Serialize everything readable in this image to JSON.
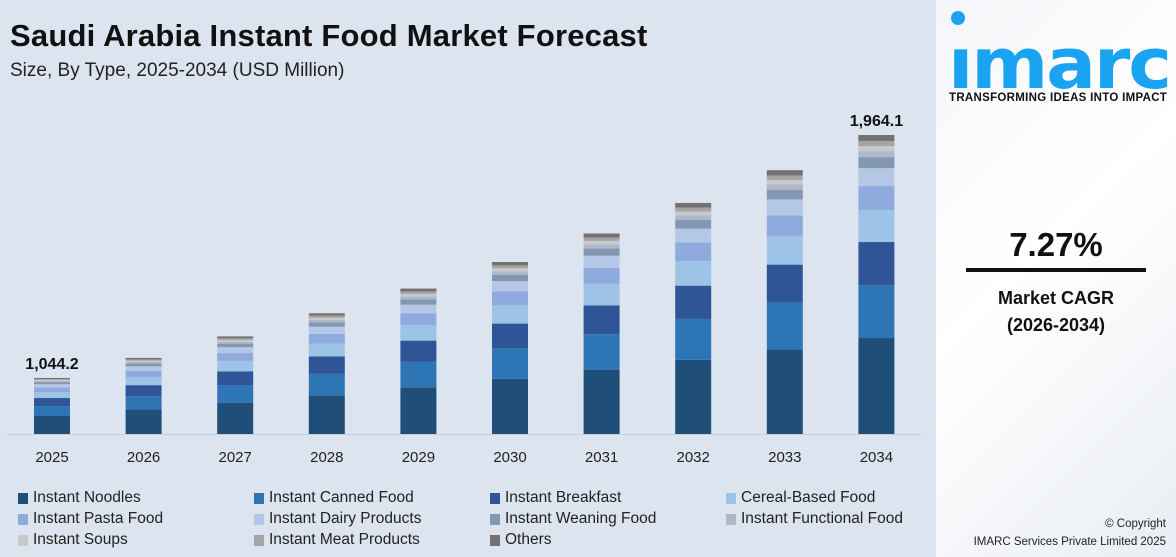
{
  "header": {
    "title": "Saudi Arabia Instant Food Market Forecast",
    "subtitle": "Size, By Type, 2025-2034 (USD Million)"
  },
  "panel": {
    "logo_text": "imarc",
    "tagline": "TRANSFORMING IDEAS INTO IMPACT",
    "cagr": "7.27%",
    "cagr_label": "Market CAGR",
    "cagr_period": "(2026-2034)",
    "copyright": "© Copyright",
    "company": "IMARC Services Private Limited 2025",
    "brand_color": "#1aa3f0"
  },
  "chart_data": {
    "type": "bar",
    "stacked": true,
    "title": "Saudi Arabia Instant Food Market Forecast",
    "subtitle": "Size, By Type, 2025-2034 (USD Million)",
    "categories": [
      "2025",
      "2026",
      "2027",
      "2028",
      "2029",
      "2030",
      "2031",
      "2032",
      "2033",
      "2034"
    ],
    "totals": [
      1044.2,
      1120.1,
      1201.6,
      1289.0,
      1382.7,
      1483.2,
      1591.1,
      1706.8,
      1830.9,
      1964.1
    ],
    "data_labels": {
      "2025": "1,044.2",
      "2034": "1,964.1"
    },
    "series": [
      {
        "name": "Instant Noodles",
        "color": "#1f4e79",
        "share": 0.321
      },
      {
        "name": "Instant Canned Food",
        "color": "#2e75b6",
        "share": 0.177
      },
      {
        "name": "Instant Breakfast",
        "color": "#2f5597",
        "share": 0.144
      },
      {
        "name": "Cereal-Based Food",
        "color": "#9dc3e6",
        "share": 0.107
      },
      {
        "name": "Instant Pasta Food",
        "color": "#8faadc",
        "share": 0.08
      },
      {
        "name": "Instant Dairy Products",
        "color": "#b4c7e7",
        "share": 0.06
      },
      {
        "name": "Instant Weaning Food",
        "color": "#8497b0",
        "share": 0.037
      },
      {
        "name": "Instant Functional Food",
        "color": "#adb9ca",
        "share": 0.02
      },
      {
        "name": "Instant Soups",
        "color": "#c9c9c9",
        "share": 0.017
      },
      {
        "name": "Instant Meat Products",
        "color": "#a5a5a5",
        "share": 0.017
      },
      {
        "name": "Others",
        "color": "#767171",
        "share": 0.02
      }
    ],
    "grid": false,
    "legend_position": "bottom"
  }
}
